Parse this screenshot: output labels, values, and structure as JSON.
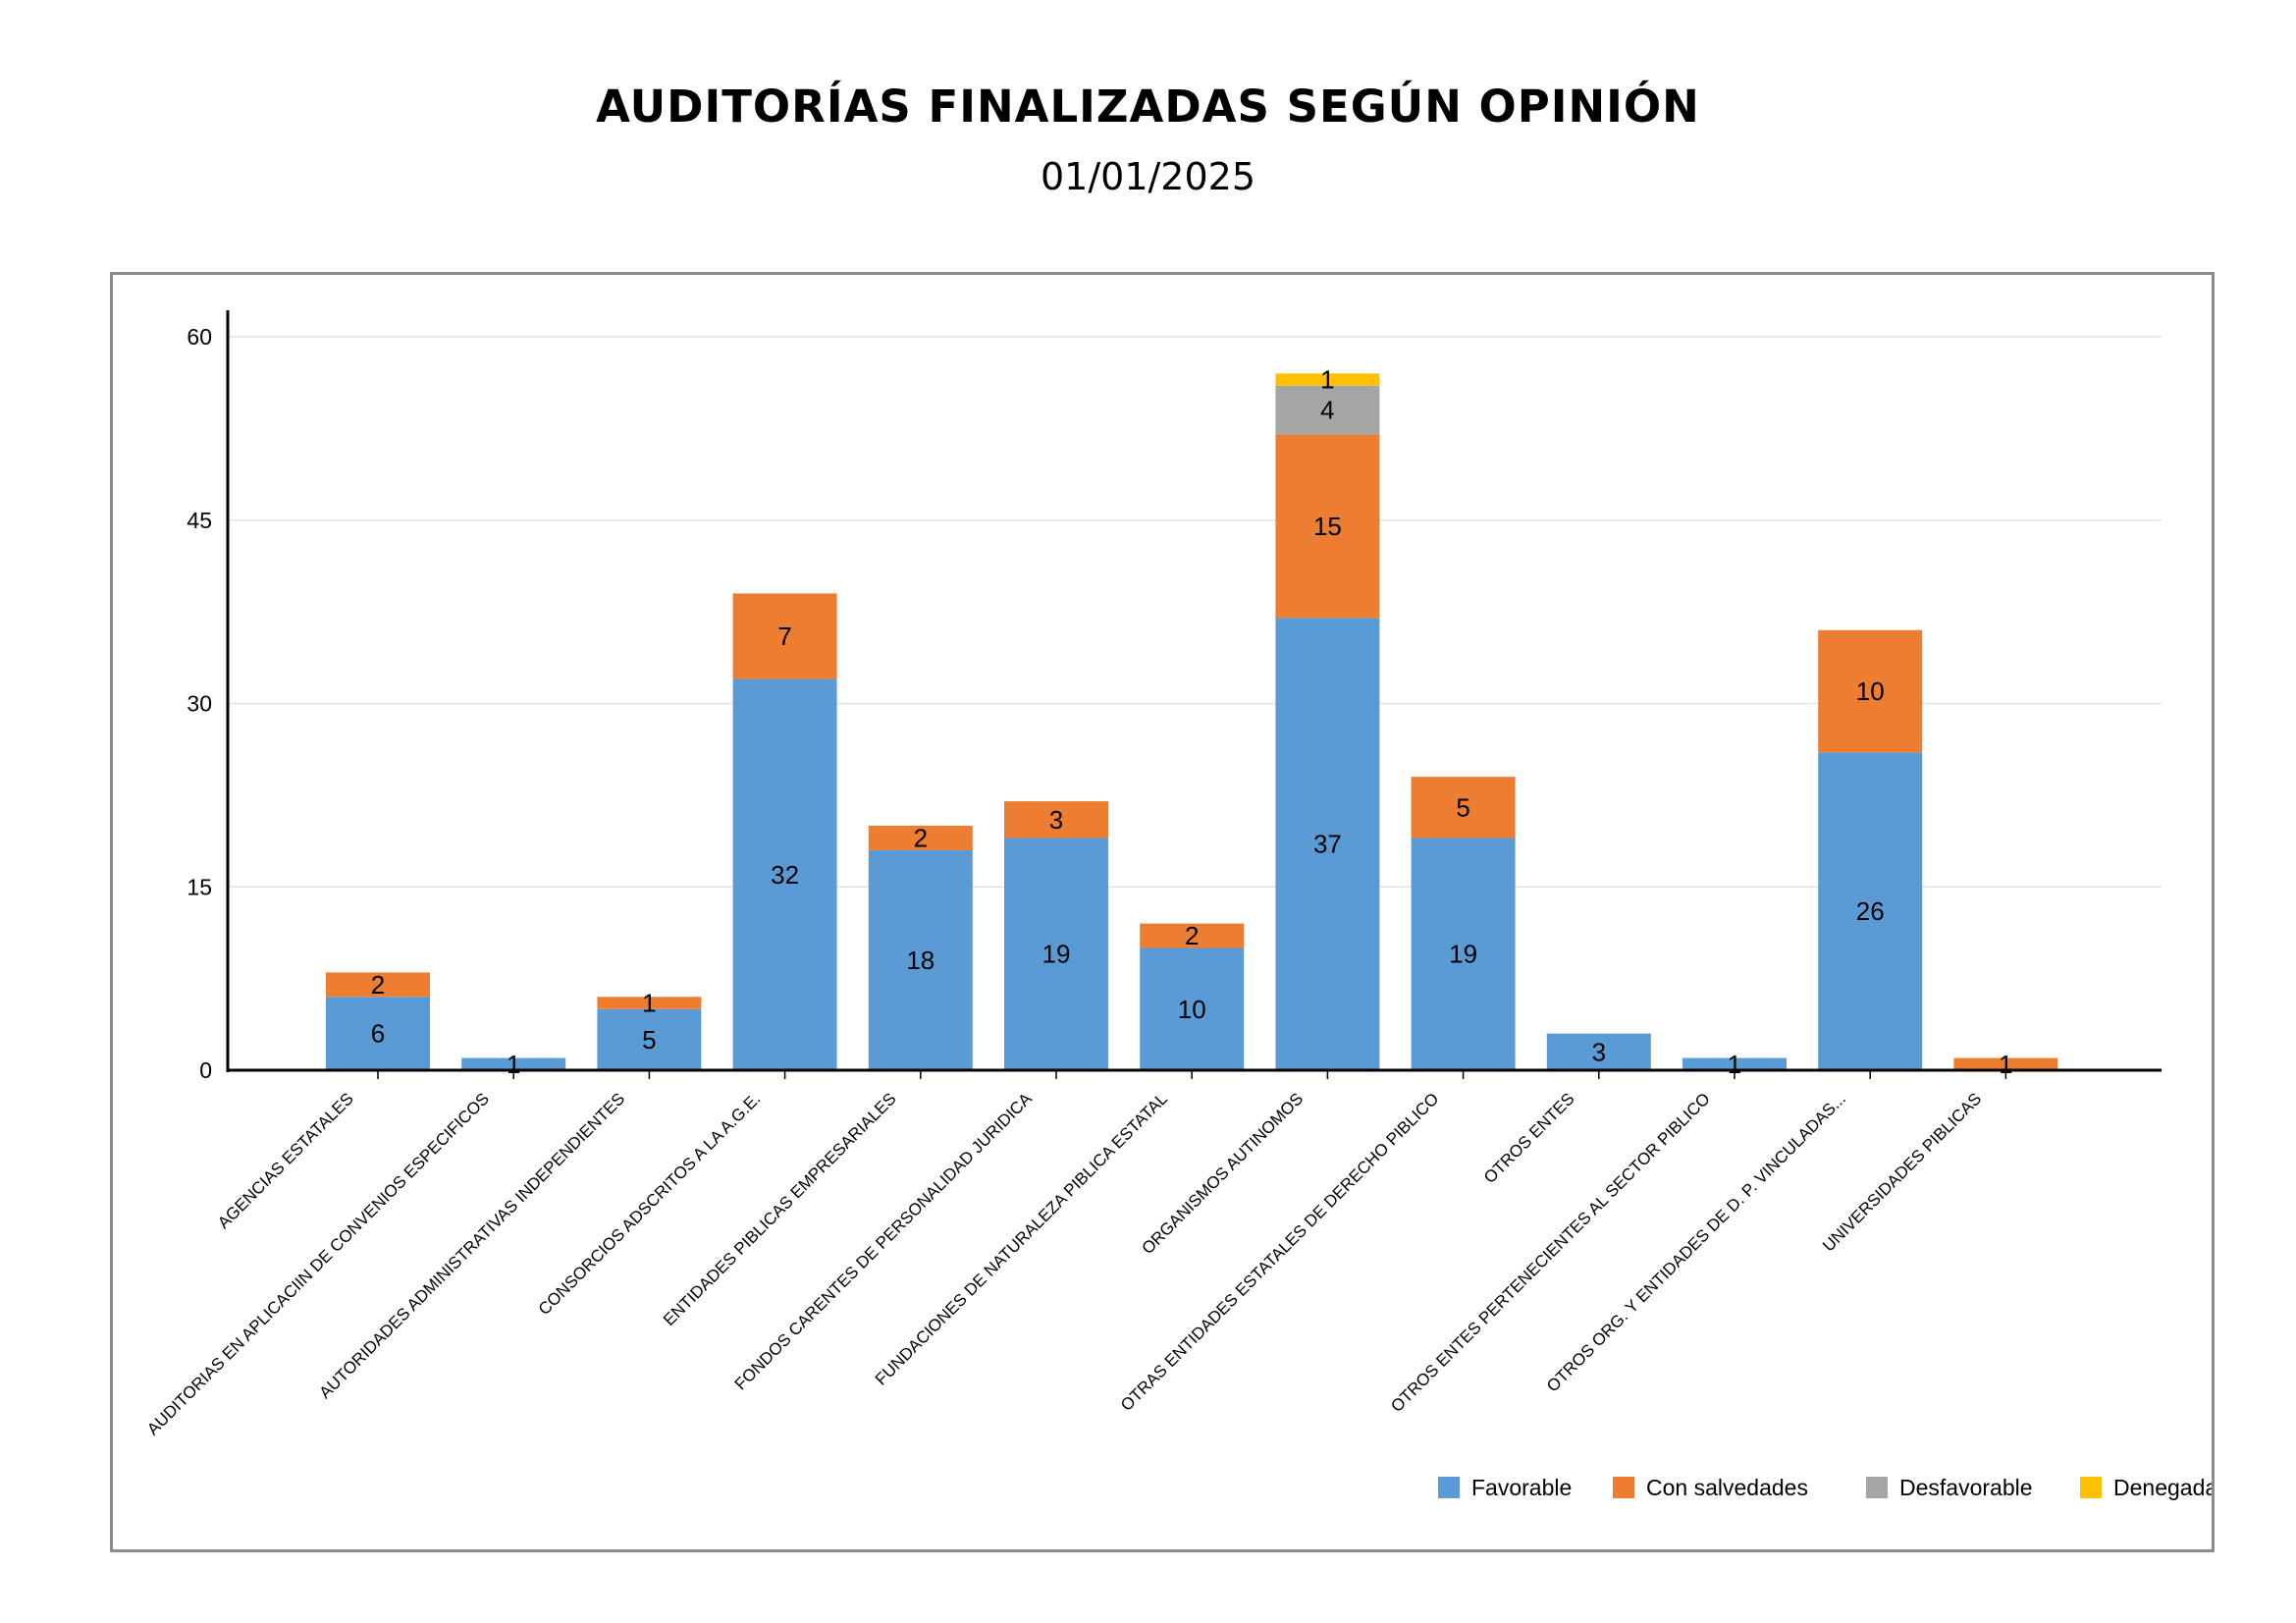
{
  "title": "AUDITORÍAS FINALIZADAS SEGÚN OPINIÓN",
  "subtitle": "01/01/2025",
  "chart_data": {
    "type": "bar",
    "stacked": true,
    "categories": [
      "AGENCIAS ESTATALES",
      "AUDITORIAS EN APLICACIIN DE CONVENIOS ESPECIFICOS",
      "AUTORIDADES ADMINISTRATIVAS INDEPENDIENTES",
      "CONSORCIOS ADSCRITOS A LA A.G.E.",
      "ENTIDADES PIBLICAS EMPRESARIALES",
      "FONDOS CARENTES DE PERSONALIDAD JURIDICA",
      "FUNDACIONES DE NATURALEZA PIBLICA ESTATAL",
      "ORGANISMOS AUTINOMOS",
      "OTRAS ENTIDADES ESTATALES DE DERECHO PIBLICO",
      "OTROS ENTES",
      "OTROS ENTES PERTENECIENTES AL SECTOR PIBLICO",
      "OTROS ORG. Y ENTIDADES DE D. P. VINCULADAS...",
      "UNIVERSIDADES PIBLICAS"
    ],
    "series": [
      {
        "name": "Favorable",
        "color": "#5b9bd5",
        "values": [
          6,
          1,
          5,
          32,
          18,
          19,
          10,
          37,
          19,
          3,
          1,
          26,
          0
        ]
      },
      {
        "name": "Con salvedades",
        "color": "#ed7d31",
        "values": [
          2,
          0,
          1,
          7,
          2,
          3,
          2,
          15,
          5,
          0,
          0,
          10,
          1
        ]
      },
      {
        "name": "Desfavorable",
        "color": "#a5a5a5",
        "values": [
          0,
          0,
          0,
          0,
          0,
          0,
          0,
          4,
          0,
          0,
          0,
          0,
          0
        ]
      },
      {
        "name": "Denegada",
        "color": "#ffc000",
        "values": [
          0,
          0,
          0,
          0,
          0,
          0,
          0,
          1,
          0,
          0,
          0,
          0,
          0
        ]
      }
    ],
    "yticks": [
      0,
      15,
      30,
      45,
      60
    ],
    "ylim": [
      0,
      62
    ],
    "grid": true,
    "legend_position": "bottom-right",
    "xlabel": "",
    "ylabel": ""
  }
}
